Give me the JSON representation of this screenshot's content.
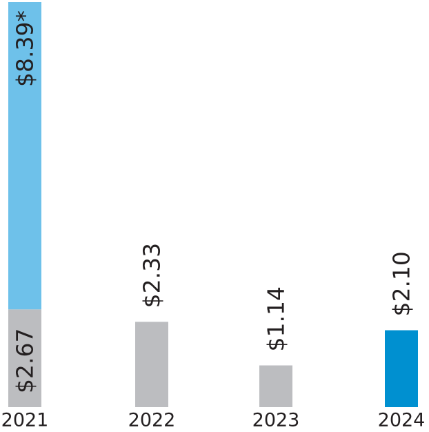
{
  "chart_data": {
    "type": "stacked-bar",
    "categories": [
      "2021",
      "2022",
      "2023",
      "2024"
    ],
    "series": [
      {
        "color": "#bcbdc0",
        "values": [
          2.67,
          2.33,
          1.14,
          null
        ],
        "value_labels": [
          "$2.67",
          "$2.33",
          "$1.14",
          null
        ]
      },
      {
        "color": "#0090d0",
        "values": [
          null,
          null,
          null,
          2.1
        ],
        "value_labels": [
          null,
          null,
          null,
          "$2.10"
        ]
      },
      {
        "color": "#6ec1ea",
        "values": [
          8.39,
          null,
          null,
          null
        ],
        "value_labels": [
          "$8.39*",
          null,
          null,
          null
        ]
      }
    ]
  }
}
